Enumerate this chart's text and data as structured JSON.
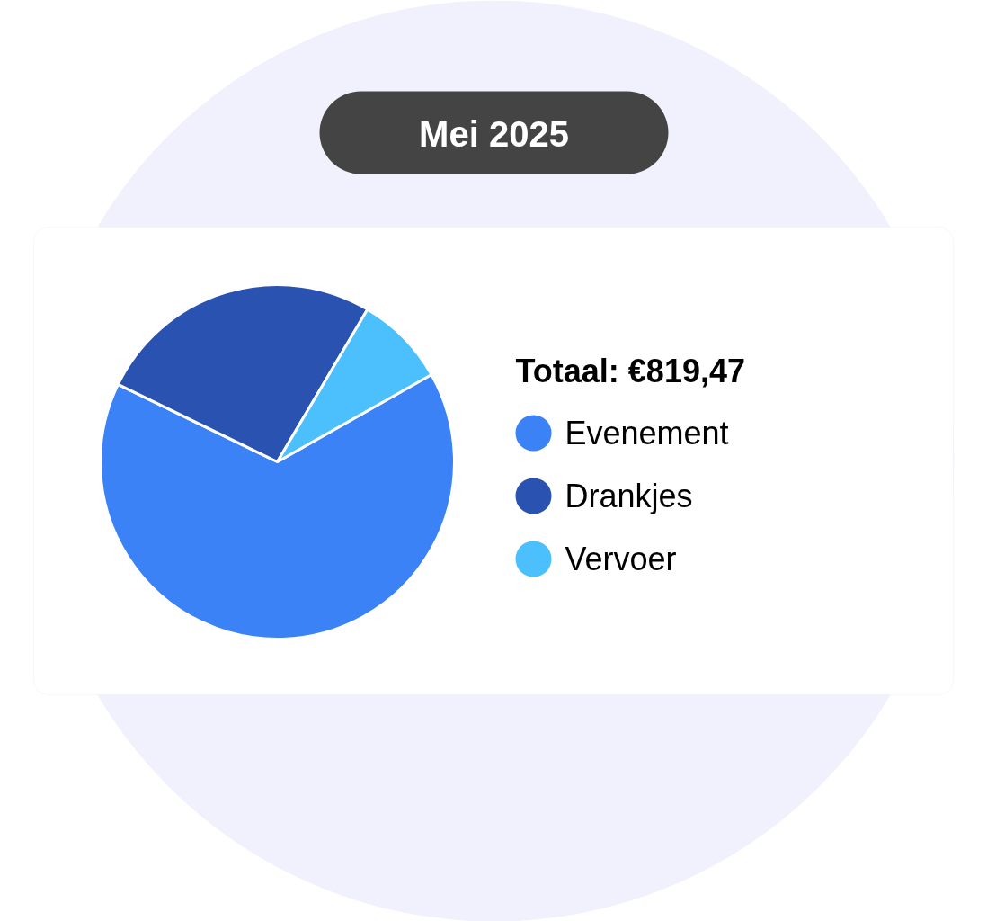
{
  "chart_data": {
    "type": "pie",
    "title": "Totaal: €819,47",
    "subtitle": "Mei 2025",
    "categories": [
      "Evenement",
      "Drankjes",
      "Vervoer"
    ],
    "values": [
      65.4,
      26.3,
      8.3
    ],
    "colors": [
      "#3b82f6",
      "#2a52b0",
      "#4cc0fc"
    ],
    "legend": "right"
  }
}
